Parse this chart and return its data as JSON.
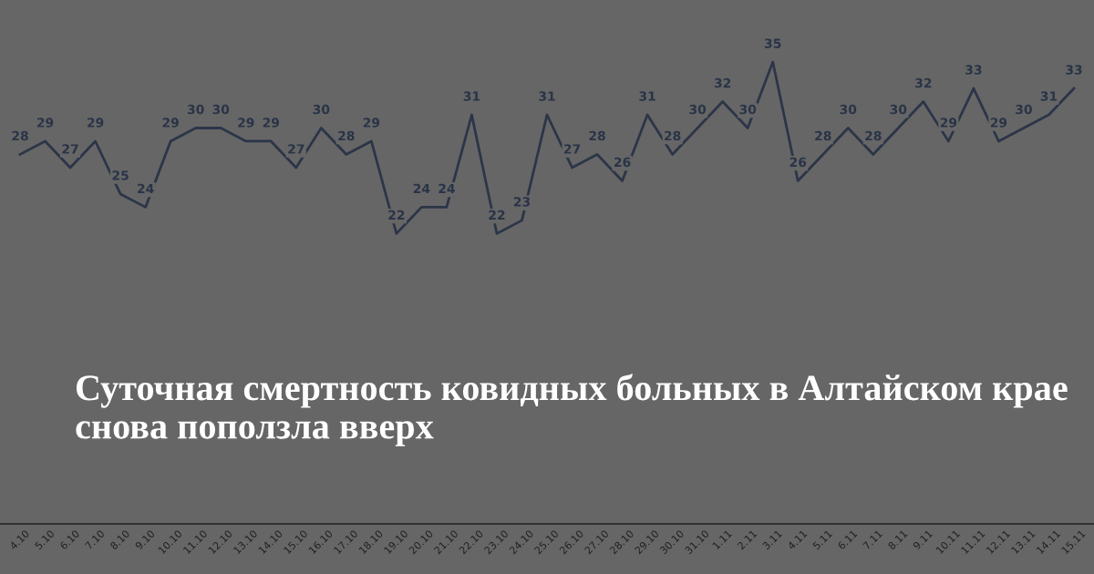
{
  "chart_data": {
    "type": "line",
    "title": "Суточная смертность ковидных больных в Алтайском крае снова поползла вверх",
    "categories": [
      "4.10",
      "5.10",
      "6.10",
      "7.10",
      "8.10",
      "9.10",
      "10.10",
      "11.10",
      "12.10",
      "13.10",
      "14.10",
      "15.10",
      "16.10",
      "17.10",
      "18.10",
      "19.10",
      "20.10",
      "21.10",
      "22.10",
      "23.10",
      "24.10",
      "25.10",
      "26.10",
      "27.10",
      "28.10",
      "29.10",
      "30.10",
      "31.10",
      "1.11",
      "2.11",
      "3.11",
      "4.11",
      "5.11",
      "6.11",
      "7.11",
      "8.11",
      "9.11",
      "10.11",
      "11.11",
      "12.11",
      "13.11",
      "14.11",
      "15.11"
    ],
    "series": [
      {
        "color": "#2c3548",
        "values": [
          28,
          29,
          27,
          29,
          25,
          24,
          29,
          30,
          30,
          29,
          29,
          27,
          30,
          28,
          29,
          22,
          24,
          24,
          31,
          22,
          23,
          31,
          27,
          28,
          26,
          31,
          28,
          30,
          32,
          30,
          35,
          26,
          28,
          30,
          28,
          30,
          32,
          29,
          33,
          29,
          30,
          31,
          33
        ]
      }
    ],
    "ylim": [
      0,
      39.7
    ],
    "tick_labels": "x",
    "data_labels": true,
    "marker": "none",
    "line_style": "solid",
    "legend": false,
    "grid": false
  }
}
